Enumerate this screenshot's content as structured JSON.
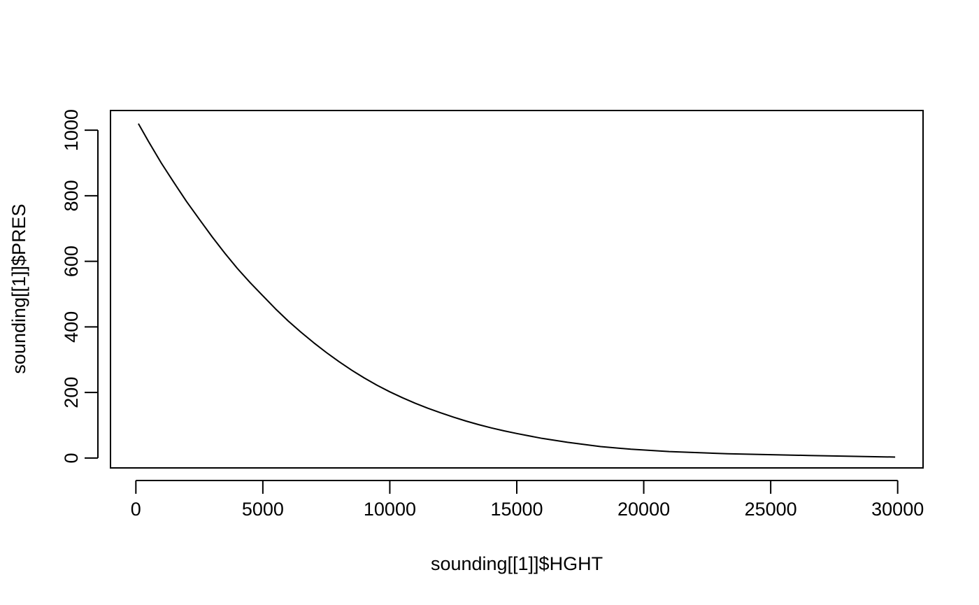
{
  "chart_data": {
    "type": "line",
    "title": "",
    "xlabel": "sounding[[1]]$HGHT",
    "ylabel": "sounding[[1]]$PRES",
    "xlim": [
      -1000,
      31000
    ],
    "ylim": [
      -30,
      1060
    ],
    "x_ticks": [
      0,
      5000,
      10000,
      15000,
      20000,
      25000,
      30000
    ],
    "y_ticks": [
      0,
      200,
      400,
      600,
      800,
      1000
    ],
    "grid": false,
    "legend": "none",
    "series": [
      {
        "color": "#000000",
        "x": [
          100,
          500,
          1000,
          1500,
          2000,
          2500,
          3000,
          3500,
          4000,
          4500,
          5000,
          5500,
          6000,
          6500,
          7000,
          7500,
          8000,
          8500,
          9000,
          9500,
          10000,
          10500,
          11000,
          11500,
          12000,
          12500,
          13000,
          13500,
          14000,
          14500,
          15000,
          16000,
          17000,
          18300,
          19500,
          21000,
          23300,
          26500,
          29900
        ],
        "y": [
          1020,
          965,
          900,
          840,
          782,
          728,
          675,
          625,
          578,
          535,
          495,
          455,
          418,
          384,
          352,
          322,
          294,
          268,
          244,
          222,
          202,
          184,
          167,
          152,
          138,
          125,
          113,
          102,
          92,
          83,
          75,
          60,
          48,
          35,
          27,
          20,
          13,
          8,
          3
        ]
      }
    ]
  }
}
